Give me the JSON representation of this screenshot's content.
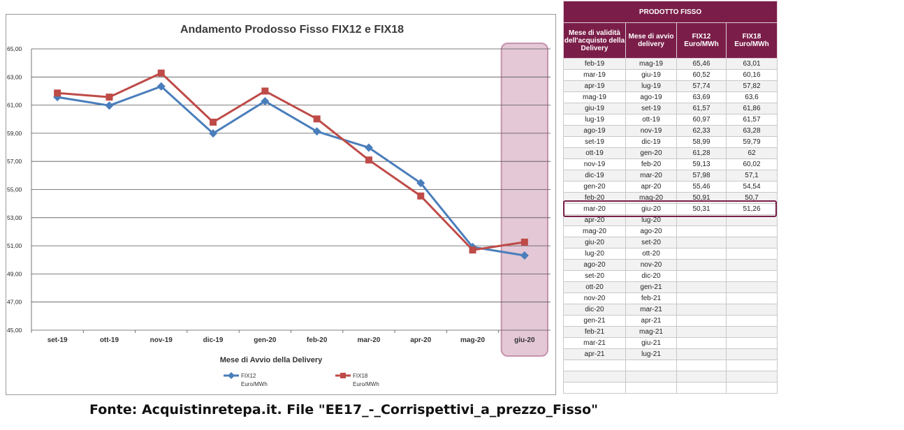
{
  "chart_data": {
    "type": "line",
    "title": "Andamento Prodosso Fisso FIX12  e FIX18",
    "xlabel": "Mese di Avvio della Delivery",
    "ylabel": "",
    "categories": [
      "set-19",
      "ott-19",
      "nov-19",
      "dic-19",
      "gen-20",
      "feb-20",
      "mar-20",
      "apr-20",
      "mag-20",
      "giu-20"
    ],
    "ylim": [
      45,
      65
    ],
    "yticks": [
      "45,00",
      "47,00",
      "49,00",
      "51,00",
      "53,00",
      "55,00",
      "57,00",
      "59,00",
      "61,00",
      "63,00",
      "65,00"
    ],
    "grid": "horizontal",
    "legend_position": "bottom",
    "highlighted_category": "giu-20",
    "series": [
      {
        "name": "FIX12 Euro/MWh",
        "legend_line1": "FIX12",
        "legend_line2": "Euro/MWh",
        "color": "#4a7ebb",
        "marker": "diamond",
        "values": [
          61.57,
          60.97,
          62.33,
          58.99,
          61.28,
          59.13,
          57.98,
          55.46,
          50.91,
          50.31
        ]
      },
      {
        "name": "FIX18 Euro/MWh",
        "legend_line1": "FIX18",
        "legend_line2": "Euro/MWh",
        "color": "#be4b48",
        "marker": "square",
        "values": [
          61.86,
          61.57,
          63.28,
          59.79,
          62.0,
          60.02,
          57.1,
          54.54,
          50.7,
          51.26
        ]
      }
    ]
  },
  "table": {
    "title": "PRODOTTO FISSO",
    "headers": [
      "Mese di validità dell'acquisto della Delivery",
      "Mese di avvio delivery",
      "FIX12 Euro/MWh",
      "FIX18 Euro/MWh"
    ],
    "highlighted_row": 13,
    "rows": [
      [
        "feb-19",
        "mag-19",
        "65,46",
        "63,01"
      ],
      [
        "mar-19",
        "giu-19",
        "60,52",
        "60,16"
      ],
      [
        "apr-19",
        "lug-19",
        "57,74",
        "57,82"
      ],
      [
        "mag-19",
        "ago-19",
        "63,69",
        "63,6"
      ],
      [
        "giu-19",
        "set-19",
        "61,57",
        "61,86"
      ],
      [
        "lug-19",
        "ott-19",
        "60,97",
        "61,57"
      ],
      [
        "ago-19",
        "nov-19",
        "62,33",
        "63,28"
      ],
      [
        "set-19",
        "dic-19",
        "58,99",
        "59,79"
      ],
      [
        "ott-19",
        "gen-20",
        "61,28",
        "62"
      ],
      [
        "nov-19",
        "feb-20",
        "59,13",
        "60,02"
      ],
      [
        "dic-19",
        "mar-20",
        "57,98",
        "57,1"
      ],
      [
        "gen-20",
        "apr-20",
        "55,46",
        "54,54"
      ],
      [
        "feb-20",
        "mag-20",
        "50,91",
        "50,7"
      ],
      [
        "mar-20",
        "giu-20",
        "50,31",
        "51,26"
      ],
      [
        "apr-20",
        "lug-20",
        "",
        ""
      ],
      [
        "mag-20",
        "ago-20",
        "",
        ""
      ],
      [
        "giu-20",
        "set-20",
        "",
        ""
      ],
      [
        "lug-20",
        "ott-20",
        "",
        ""
      ],
      [
        "ago-20",
        "nov-20",
        "",
        ""
      ],
      [
        "set-20",
        "dic-20",
        "",
        ""
      ],
      [
        "ott-20",
        "gen-21",
        "",
        ""
      ],
      [
        "nov-20",
        "feb-21",
        "",
        ""
      ],
      [
        "dic-20",
        "mar-21",
        "",
        ""
      ],
      [
        "gen-21",
        "apr-21",
        "",
        ""
      ],
      [
        "feb-21",
        "mag-21",
        "",
        ""
      ],
      [
        "mar-21",
        "giu-21",
        "",
        ""
      ],
      [
        "apr-21",
        "lug-21",
        "",
        ""
      ],
      [
        "",
        "",
        "",
        ""
      ],
      [
        "",
        "",
        "",
        ""
      ],
      [
        "",
        "",
        "",
        ""
      ]
    ]
  },
  "source_note": "Fonte: Acquistinretepa.it. File \"EE17_-_Corrispettivi_a_prezzo_Fisso\""
}
